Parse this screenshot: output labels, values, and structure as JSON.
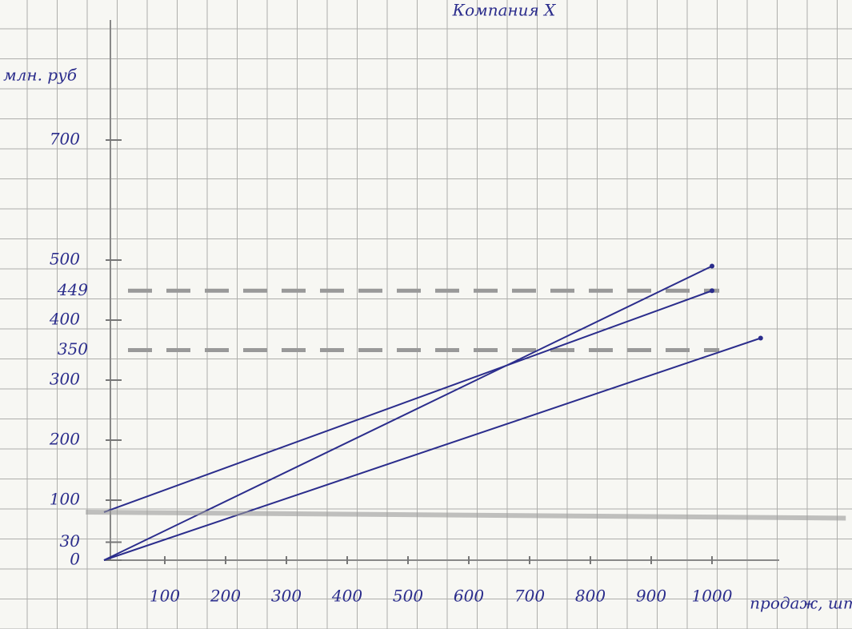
{
  "chart_data": {
    "type": "line",
    "title": "Компания X",
    "y_label": "млн. руб",
    "x_label": "продаж, шт",
    "xlim": [
      0,
      1150
    ],
    "ylim": [
      0,
      900
    ],
    "xticks": [
      100,
      200,
      300,
      400,
      500,
      600,
      700,
      800,
      900,
      1000
    ],
    "yticks": [
      0,
      30,
      100,
      200,
      300,
      400,
      500,
      700
    ],
    "hlines": [
      449,
      350
    ],
    "series": [
      {
        "color": "#2b2d8c",
        "x": [
          0,
          1000
        ],
        "values": [
          0,
          490
        ]
      },
      {
        "color": "#2b2d8c",
        "x": [
          0,
          1000
        ],
        "values": [
          80,
          449
        ]
      },
      {
        "color": "#2b2d8c",
        "x": [
          0,
          1080
        ],
        "values": [
          0,
          370
        ]
      },
      {
        "color": "#9a9a9a",
        "x": [
          -30,
          1220
        ],
        "values": [
          80,
          70
        ]
      }
    ],
    "grid": true
  }
}
